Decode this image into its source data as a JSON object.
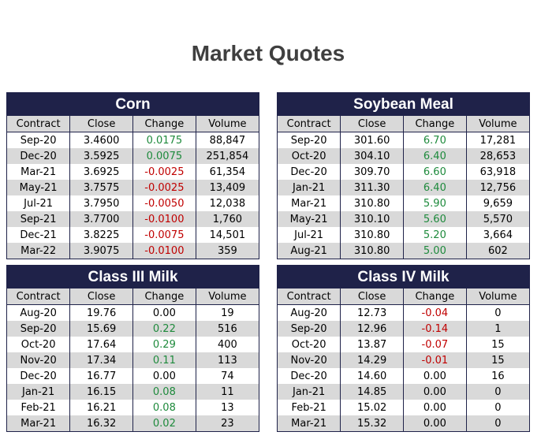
{
  "page": {
    "title": "Market Quotes"
  },
  "columns": [
    "Contract",
    "Close",
    "Change",
    "Volume"
  ],
  "colors": {
    "header_bg": "#1f2249",
    "positive": "#1e8a3c",
    "negative": "#c00000",
    "stripe": "#d9d9d9"
  },
  "panels": [
    {
      "id": "corn",
      "name": "Corn",
      "rows": [
        {
          "contract": "Sep-20",
          "close": "3.4600",
          "change": "0.0175",
          "volume": "88,847"
        },
        {
          "contract": "Dec-20",
          "close": "3.5925",
          "change": "0.0075",
          "volume": "251,854"
        },
        {
          "contract": "Mar-21",
          "close": "3.6925",
          "change": "-0.0025",
          "volume": "61,354"
        },
        {
          "contract": "May-21",
          "close": "3.7575",
          "change": "-0.0025",
          "volume": "13,409"
        },
        {
          "contract": "Jul-21",
          "close": "3.7950",
          "change": "-0.0050",
          "volume": "12,038"
        },
        {
          "contract": "Sep-21",
          "close": "3.7700",
          "change": "-0.0100",
          "volume": "1,760"
        },
        {
          "contract": "Dec-21",
          "close": "3.8225",
          "change": "-0.0075",
          "volume": "14,501"
        },
        {
          "contract": "Mar-22",
          "close": "3.9075",
          "change": "-0.0100",
          "volume": "359"
        }
      ]
    },
    {
      "id": "soy",
      "name": "Soybean Meal",
      "rows": [
        {
          "contract": "Sep-20",
          "close": "301.60",
          "change": "6.70",
          "volume": "17,281"
        },
        {
          "contract": "Oct-20",
          "close": "304.10",
          "change": "6.40",
          "volume": "28,653"
        },
        {
          "contract": "Dec-20",
          "close": "309.70",
          "change": "6.60",
          "volume": "63,918"
        },
        {
          "contract": "Jan-21",
          "close": "311.30",
          "change": "6.40",
          "volume": "12,756"
        },
        {
          "contract": "Mar-21",
          "close": "310.80",
          "change": "5.90",
          "volume": "9,659"
        },
        {
          "contract": "May-21",
          "close": "310.10",
          "change": "5.60",
          "volume": "5,570"
        },
        {
          "contract": "Jul-21",
          "close": "310.80",
          "change": "5.20",
          "volume": "3,664"
        },
        {
          "contract": "Aug-21",
          "close": "310.80",
          "change": "5.00",
          "volume": "602"
        }
      ]
    },
    {
      "id": "c3",
      "name": "Class III Milk",
      "rows": [
        {
          "contract": "Aug-20",
          "close": "19.76",
          "change": "0.00",
          "volume": "19"
        },
        {
          "contract": "Sep-20",
          "close": "15.69",
          "change": "0.22",
          "volume": "516"
        },
        {
          "contract": "Oct-20",
          "close": "17.64",
          "change": "0.29",
          "volume": "400"
        },
        {
          "contract": "Nov-20",
          "close": "17.34",
          "change": "0.11",
          "volume": "113"
        },
        {
          "contract": "Dec-20",
          "close": "16.77",
          "change": "0.00",
          "volume": "74"
        },
        {
          "contract": "Jan-21",
          "close": "16.15",
          "change": "0.08",
          "volume": "11"
        },
        {
          "contract": "Feb-21",
          "close": "16.21",
          "change": "0.08",
          "volume": "13"
        },
        {
          "contract": "Mar-21",
          "close": "16.32",
          "change": "0.02",
          "volume": "23"
        }
      ]
    },
    {
      "id": "c4",
      "name": "Class IV Milk",
      "rows": [
        {
          "contract": "Aug-20",
          "close": "12.73",
          "change": "-0.04",
          "volume": "0"
        },
        {
          "contract": "Sep-20",
          "close": "12.96",
          "change": "-0.14",
          "volume": "1"
        },
        {
          "contract": "Oct-20",
          "close": "13.87",
          "change": "-0.07",
          "volume": "15"
        },
        {
          "contract": "Nov-20",
          "close": "14.29",
          "change": "-0.01",
          "volume": "15"
        },
        {
          "contract": "Dec-20",
          "close": "14.60",
          "change": "0.00",
          "volume": "16"
        },
        {
          "contract": "Jan-21",
          "close": "14.85",
          "change": "0.00",
          "volume": "0"
        },
        {
          "contract": "Feb-21",
          "close": "15.02",
          "change": "0.00",
          "volume": "0"
        },
        {
          "contract": "Mar-21",
          "close": "15.32",
          "change": "0.00",
          "volume": "0"
        }
      ]
    }
  ]
}
